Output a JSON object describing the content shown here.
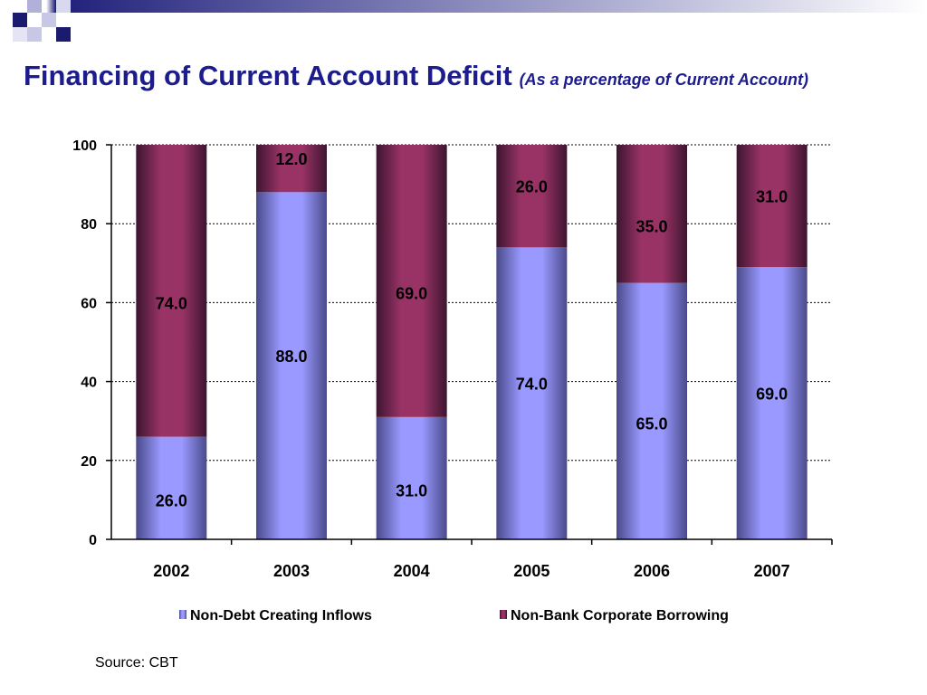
{
  "title": "Financing of Current Account Deficit",
  "subtitle": "(As a percentage of Current Account)",
  "source": "Source: CBT",
  "colors": {
    "title": "#1c1c8c",
    "series1": "#9999ff",
    "series2": "#993366"
  },
  "chart_data": {
    "type": "bar",
    "stacked": true,
    "categories": [
      "2002",
      "2003",
      "2004",
      "2005",
      "2006",
      "2007"
    ],
    "series": [
      {
        "name": "Non-Debt Creating Inflows",
        "values": [
          26.0,
          88.0,
          31.0,
          74.0,
          65.0,
          69.0
        ],
        "labels": [
          "26.0",
          "88.0",
          "31.0",
          "74.0",
          "65.0",
          "69.0"
        ]
      },
      {
        "name": "Non-Bank Corporate Borrowing",
        "values": [
          74.0,
          12.0,
          69.0,
          26.0,
          35.0,
          31.0
        ],
        "labels": [
          "74.0",
          "12.0",
          "69.0",
          "26.0",
          "35.0",
          "31.0"
        ]
      }
    ],
    "ylim": [
      0,
      100
    ],
    "yticks": [
      "0",
      "20",
      "40",
      "60",
      "80",
      "100"
    ],
    "grid": true,
    "legend_position": "bottom"
  }
}
